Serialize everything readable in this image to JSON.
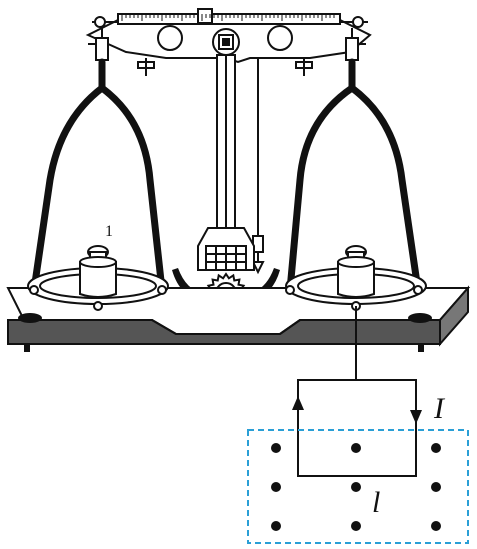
{
  "labels": {
    "pan_number": "1",
    "current": "I",
    "length": "l"
  },
  "colors": {
    "ink": "#111111",
    "field_border": "#2a9fd6",
    "background": "#ffffff"
  },
  "field": {
    "direction": "out-of-page",
    "dot_rows": 3,
    "dot_cols": 3
  }
}
